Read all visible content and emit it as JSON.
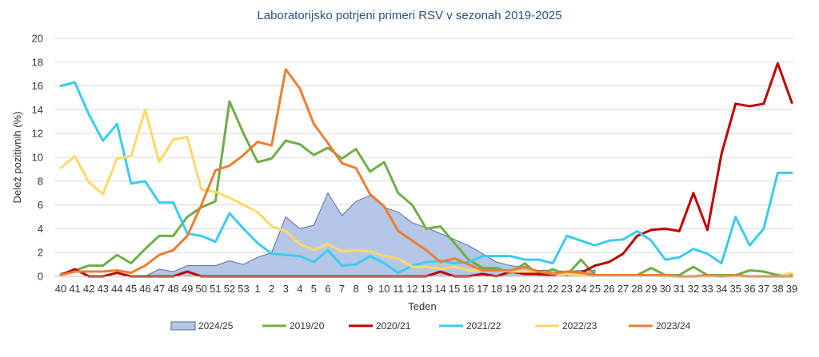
{
  "chart_data": {
    "type": "line",
    "title": "Laboratorijsko potrjeni primeri RSV v sezonah 2019-2025",
    "xlabel": "Teden",
    "ylabel": "Delež pozitivnih (%)",
    "ylim": [
      0,
      20
    ],
    "yticks": [
      "0",
      "2",
      "4",
      "6",
      "8",
      "10",
      "12",
      "14",
      "16",
      "18",
      "20"
    ],
    "grid": true,
    "legend_position": "bottom",
    "categories": [
      "40",
      "41",
      "42",
      "43",
      "44",
      "45",
      "46",
      "47",
      "48",
      "49",
      "50",
      "51",
      "52",
      "53",
      "1",
      "2",
      "3",
      "4",
      "5",
      "6",
      "7",
      "8",
      "9",
      "10",
      "11",
      "12",
      "13",
      "14",
      "15",
      "16",
      "17",
      "18",
      "19",
      "20",
      "21",
      "22",
      "23",
      "24",
      "25",
      "26",
      "27",
      "28",
      "29",
      "30",
      "31",
      "32",
      "33",
      "34",
      "35",
      "36",
      "37",
      "38",
      "39"
    ],
    "series": [
      {
        "name": "2024/25",
        "kind": "area",
        "color": "#B4C7E7",
        "stroke": "#5B6E8F",
        "values": [
          0,
          0,
          0,
          0,
          0,
          0,
          0,
          0.6,
          0.4,
          0.9,
          0.9,
          0.9,
          1.3,
          1.0,
          1.6,
          2.0,
          5.0,
          4.0,
          4.3,
          7.0,
          5.1,
          6.3,
          6.8,
          5.8,
          5.4,
          4.5,
          4.1,
          3.6,
          3.1,
          2.6,
          1.9,
          1.2,
          0.9,
          0.7,
          0.5,
          0.5,
          0.4,
          0.5,
          0.5,
          null,
          null,
          null,
          null,
          null,
          null,
          null,
          null,
          null,
          null,
          null,
          null,
          null,
          null
        ]
      },
      {
        "name": "2019/20",
        "kind": "line",
        "color": "#70AD47",
        "values": [
          0.2,
          0.5,
          0.9,
          0.9,
          1.8,
          1.1,
          2.3,
          3.4,
          3.4,
          5.0,
          5.8,
          6.3,
          14.7,
          12.0,
          9.6,
          9.9,
          11.4,
          11.1,
          10.2,
          10.8,
          9.9,
          10.7,
          8.8,
          9.6,
          7.0,
          6.0,
          4.0,
          4.2,
          2.8,
          1.4,
          0.7,
          0.7,
          0.3,
          1.1,
          0.1,
          0.6,
          0.1,
          1.4,
          0.1,
          0.1,
          0.1,
          0.1,
          0.7,
          0.1,
          0.1,
          0.8,
          0.1,
          0.1,
          0.1,
          0.5,
          0.4,
          0.1,
          0.1
        ]
      },
      {
        "name": "2020/21",
        "kind": "line",
        "color": "#C00000",
        "values": [
          0.1,
          0.6,
          0,
          0,
          0.3,
          0,
          0,
          0,
          0,
          0.4,
          0,
          0,
          0,
          0,
          0,
          0,
          0,
          0,
          0,
          0,
          0,
          0,
          0,
          0,
          0,
          0,
          0,
          0.4,
          0,
          0,
          0.2,
          0,
          0.4,
          0.2,
          0.2,
          0.1,
          0.4,
          0.3,
          0.9,
          1.2,
          1.9,
          3.4,
          3.9,
          4.0,
          3.8,
          7.0,
          3.9,
          10.3,
          14.5,
          14.3,
          14.5,
          17.9,
          14.6
        ]
      },
      {
        "name": "2021/22",
        "kind": "line",
        "color": "#3CCBF0",
        "values": [
          16.0,
          16.3,
          13.6,
          11.4,
          12.8,
          7.8,
          8.0,
          6.2,
          6.2,
          3.6,
          3.4,
          2.9,
          5.3,
          4.0,
          2.8,
          1.9,
          1.8,
          1.7,
          1.2,
          2.2,
          0.9,
          1.0,
          1.7,
          1.1,
          0.3,
          0.9,
          1.2,
          1.3,
          1.1,
          1.2,
          1.7,
          1.7,
          1.7,
          1.4,
          1.4,
          1.1,
          3.4,
          3.0,
          2.6,
          3.0,
          3.1,
          3.8,
          3.0,
          1.4,
          1.6,
          2.3,
          1.9,
          1.1,
          5.0,
          2.6,
          4.0,
          8.7,
          8.7
        ]
      },
      {
        "name": "2022/23",
        "kind": "line",
        "color": "#FFD966",
        "values": [
          9.1,
          10.1,
          7.9,
          6.9,
          9.9,
          10.1,
          14.0,
          9.6,
          11.5,
          11.7,
          7.3,
          7.1,
          6.6,
          6.0,
          5.4,
          4.2,
          3.8,
          2.7,
          2.2,
          2.7,
          2.1,
          2.2,
          2.1,
          1.7,
          1.5,
          0.8,
          0.8,
          0.6,
          0.8,
          0.5,
          0.5,
          0.5,
          0.4,
          0.4,
          0.4,
          0.2,
          0.2,
          0.1,
          0.1,
          0.1,
          0.1,
          0.1,
          0.1,
          0,
          0,
          0,
          0,
          0,
          0,
          0,
          0,
          0,
          0.3
        ]
      },
      {
        "name": "2023/24",
        "kind": "line",
        "color": "#ED7D31",
        "values": [
          0.1,
          0.4,
          0.4,
          0.4,
          0.5,
          0.3,
          0.9,
          1.8,
          2.2,
          3.4,
          6.0,
          8.9,
          9.3,
          10.2,
          11.3,
          11.0,
          17.4,
          15.8,
          12.8,
          11.2,
          9.5,
          9.1,
          6.9,
          5.9,
          3.8,
          3.0,
          2.2,
          1.2,
          1.5,
          1.0,
          0.5,
          0.5,
          0.5,
          0.8,
          0.4,
          0.2,
          0.4,
          0.3,
          0.1,
          0.1,
          0.1,
          0.1,
          0.1,
          0.1,
          0,
          0,
          0.1,
          0,
          0.1,
          0,
          0,
          0,
          0
        ]
      }
    ]
  }
}
